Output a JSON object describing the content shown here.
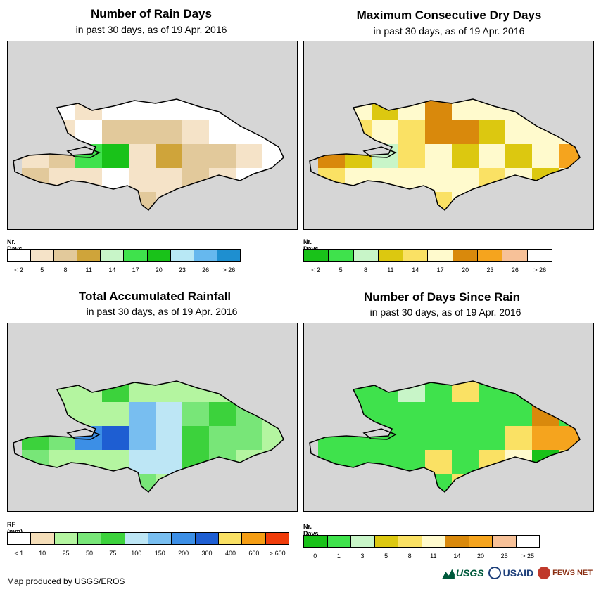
{
  "panels": [
    {
      "id": "rain-days",
      "title": "Number of Rain Days",
      "subtitle": "in past 30 days, as of 19 Apr. 2016",
      "legend": {
        "title": "Nr. Days",
        "colors": [
          "#ffffff",
          "#f5e3c8",
          "#e2c99b",
          "#cfa43a",
          "#c8f5c8",
          "#3fe24c",
          "#19c219",
          "#b8e8f5",
          "#66b8ee",
          "#1e8fd0"
        ],
        "labels": [
          "< 2",
          "5",
          "8",
          "11",
          "14",
          "17",
          "20",
          "23",
          "26",
          "> 26"
        ]
      },
      "cells": [
        [
          "#ffffff",
          "#ffffff",
          "#f5e3c8",
          "#ffffff",
          "#ffffff",
          "#ffffff",
          "#ffffff",
          "#ffffff",
          "#ffffff",
          "#f5e3c8"
        ],
        [
          "#ffffff",
          "#f5e3c8",
          "#ffffff",
          "#e2c99b",
          "#e2c99b",
          "#e2c99b",
          "#f5e3c8",
          "#ffffff",
          "#ffffff",
          "#ffffff"
        ],
        [
          "#f5e3c8",
          "#e2c99b",
          "#3fe24c",
          "#19c219",
          "#f5e3c8",
          "#cfa43a",
          "#e2c99b",
          "#e2c99b",
          "#f5e3c8",
          "#ffffff"
        ],
        [
          "#e2c99b",
          "#f5e3c8",
          "#f5e3c8",
          "#ffffff",
          "#f5e3c8",
          "#f5e3c8",
          "#e2c99b",
          "#f5e3c8",
          "#ffffff",
          "#ffffff"
        ],
        [
          "#ffffff",
          "#ffffff",
          "#f5e3c8",
          "#ffffff",
          "#e2c99b",
          "#f5e3c8",
          "#ffffff",
          "#ffffff",
          "#f5e3c8",
          "#ffffff"
        ]
      ]
    },
    {
      "id": "dry-days",
      "title": "Maximum Consecutive Dry Days",
      "subtitle": "in past 30 days, as of 19 Apr. 2016",
      "legend": {
        "title": "Nr. Days",
        "colors": [
          "#19c219",
          "#3fe24c",
          "#c8f5c8",
          "#dcc810",
          "#fae164",
          "#fffacd",
          "#d9890c",
          "#f5a41e",
          "#f7c198",
          "#ffffff"
        ],
        "labels": [
          "< 2",
          "5",
          "8",
          "11",
          "14",
          "17",
          "20",
          "23",
          "26",
          "> 26"
        ]
      },
      "cells": [
        [
          "#fffacd",
          "#fffacd",
          "#dcc810",
          "#fffacd",
          "#d9890c",
          "#fffacd",
          "#fffacd",
          "#fffacd",
          "#fffacd",
          "#fffacd"
        ],
        [
          "#fffacd",
          "#fae164",
          "#fffacd",
          "#fae164",
          "#d9890c",
          "#d9890c",
          "#dcc810",
          "#fffacd",
          "#fffacd",
          "#fffacd"
        ],
        [
          "#d9890c",
          "#dcc810",
          "#c8f5c8",
          "#fae164",
          "#fffacd",
          "#dcc810",
          "#fffacd",
          "#dcc810",
          "#fffacd",
          "#f5a41e"
        ],
        [
          "#fae164",
          "#fffacd",
          "#fffacd",
          "#fffacd",
          "#fffacd",
          "#fffacd",
          "#fae164",
          "#fffacd",
          "#dcc810",
          "#fffacd"
        ],
        [
          "#fffacd",
          "#fffacd",
          "#fffacd",
          "#fffacd",
          "#fae164",
          "#fffacd",
          "#fffacd",
          "#fffacd",
          "#fffacd",
          "#fffacd"
        ]
      ]
    },
    {
      "id": "rainfall",
      "title": "Total Accumulated Rainfall",
      "subtitle": "in past 30 days, as of 19 Apr. 2016",
      "legend": {
        "title": "RF (mm)",
        "colors": [
          "#ffffff",
          "#f5deb9",
          "#b4f5a0",
          "#78e678",
          "#3cd23c",
          "#bde6f5",
          "#78bef0",
          "#3c8fe6",
          "#1e5ed2",
          "#fae164",
          "#f59e14",
          "#f03c0a"
        ],
        "labels": [
          "< 1",
          "10",
          "25",
          "50",
          "75",
          "100",
          "150",
          "200",
          "300",
          "400",
          "600",
          "> 600"
        ]
      },
      "cells": [
        [
          "#b4f5a0",
          "#b4f5a0",
          "#b4f5a0",
          "#3cd23c",
          "#b4f5a0",
          "#b4f5a0",
          "#b4f5a0",
          "#b4f5a0",
          "#b4f5a0",
          "#b4f5a0"
        ],
        [
          "#b4f5a0",
          "#b4f5a0",
          "#b4f5a0",
          "#b4f5a0",
          "#78bef0",
          "#bde6f5",
          "#78e678",
          "#3cd23c",
          "#78e678",
          "#b4f5a0"
        ],
        [
          "#3cd23c",
          "#78e678",
          "#3c8fe6",
          "#1e5ed2",
          "#78bef0",
          "#bde6f5",
          "#3cd23c",
          "#78e678",
          "#78e678",
          "#b4f5a0"
        ],
        [
          "#78e678",
          "#b4f5a0",
          "#b4f5a0",
          "#b4f5a0",
          "#bde6f5",
          "#bde6f5",
          "#3cd23c",
          "#78e678",
          "#b4f5a0",
          "#b4f5a0"
        ],
        [
          "#b4f5a0",
          "#b4f5a0",
          "#b4f5a0",
          "#b4f5a0",
          "#78e678",
          "#b4f5a0",
          "#b4f5a0",
          "#b4f5a0",
          "#b4f5a0",
          "#b4f5a0"
        ]
      ]
    },
    {
      "id": "since-rain",
      "title": "Number of Days Since Rain",
      "subtitle": "in past 30 days, as of 19 Apr. 2016",
      "legend": {
        "title": "Nr. Days",
        "colors": [
          "#19c219",
          "#3fe24c",
          "#c8f5c8",
          "#dcc810",
          "#fae164",
          "#fffacd",
          "#d9890c",
          "#f5a41e",
          "#f7c198",
          "#ffffff"
        ],
        "labels": [
          "0",
          "1",
          "3",
          "5",
          "8",
          "11",
          "14",
          "20",
          "25",
          "> 25"
        ]
      },
      "cells": [
        [
          "#3fe24c",
          "#3fe24c",
          "#3fe24c",
          "#c8f5c8",
          "#3fe24c",
          "#fae164",
          "#3fe24c",
          "#3fe24c",
          "#19c219",
          "#3fe24c"
        ],
        [
          "#3fe24c",
          "#3fe24c",
          "#3fe24c",
          "#3fe24c",
          "#3fe24c",
          "#3fe24c",
          "#3fe24c",
          "#3fe24c",
          "#d9890c",
          "#3fe24c"
        ],
        [
          "#3fe24c",
          "#3fe24c",
          "#3fe24c",
          "#3fe24c",
          "#3fe24c",
          "#3fe24c",
          "#3fe24c",
          "#fae164",
          "#f5a41e",
          "#f5a41e"
        ],
        [
          "#3fe24c",
          "#3fe24c",
          "#3fe24c",
          "#3fe24c",
          "#fae164",
          "#3fe24c",
          "#fae164",
          "#fffacd",
          "#19c219",
          "#fae164"
        ],
        [
          "#3fe24c",
          "#3fe24c",
          "#3fe24c",
          "#3fe24c",
          "#3fe24c",
          "#fae164",
          "#3fe24c",
          "#fae164",
          "#fae164",
          "#3fe24c"
        ]
      ]
    }
  ],
  "footer": {
    "credit": "Map produced by USGS/EROS",
    "logos": [
      "USGS",
      "USAID",
      "FEWS NET"
    ]
  }
}
